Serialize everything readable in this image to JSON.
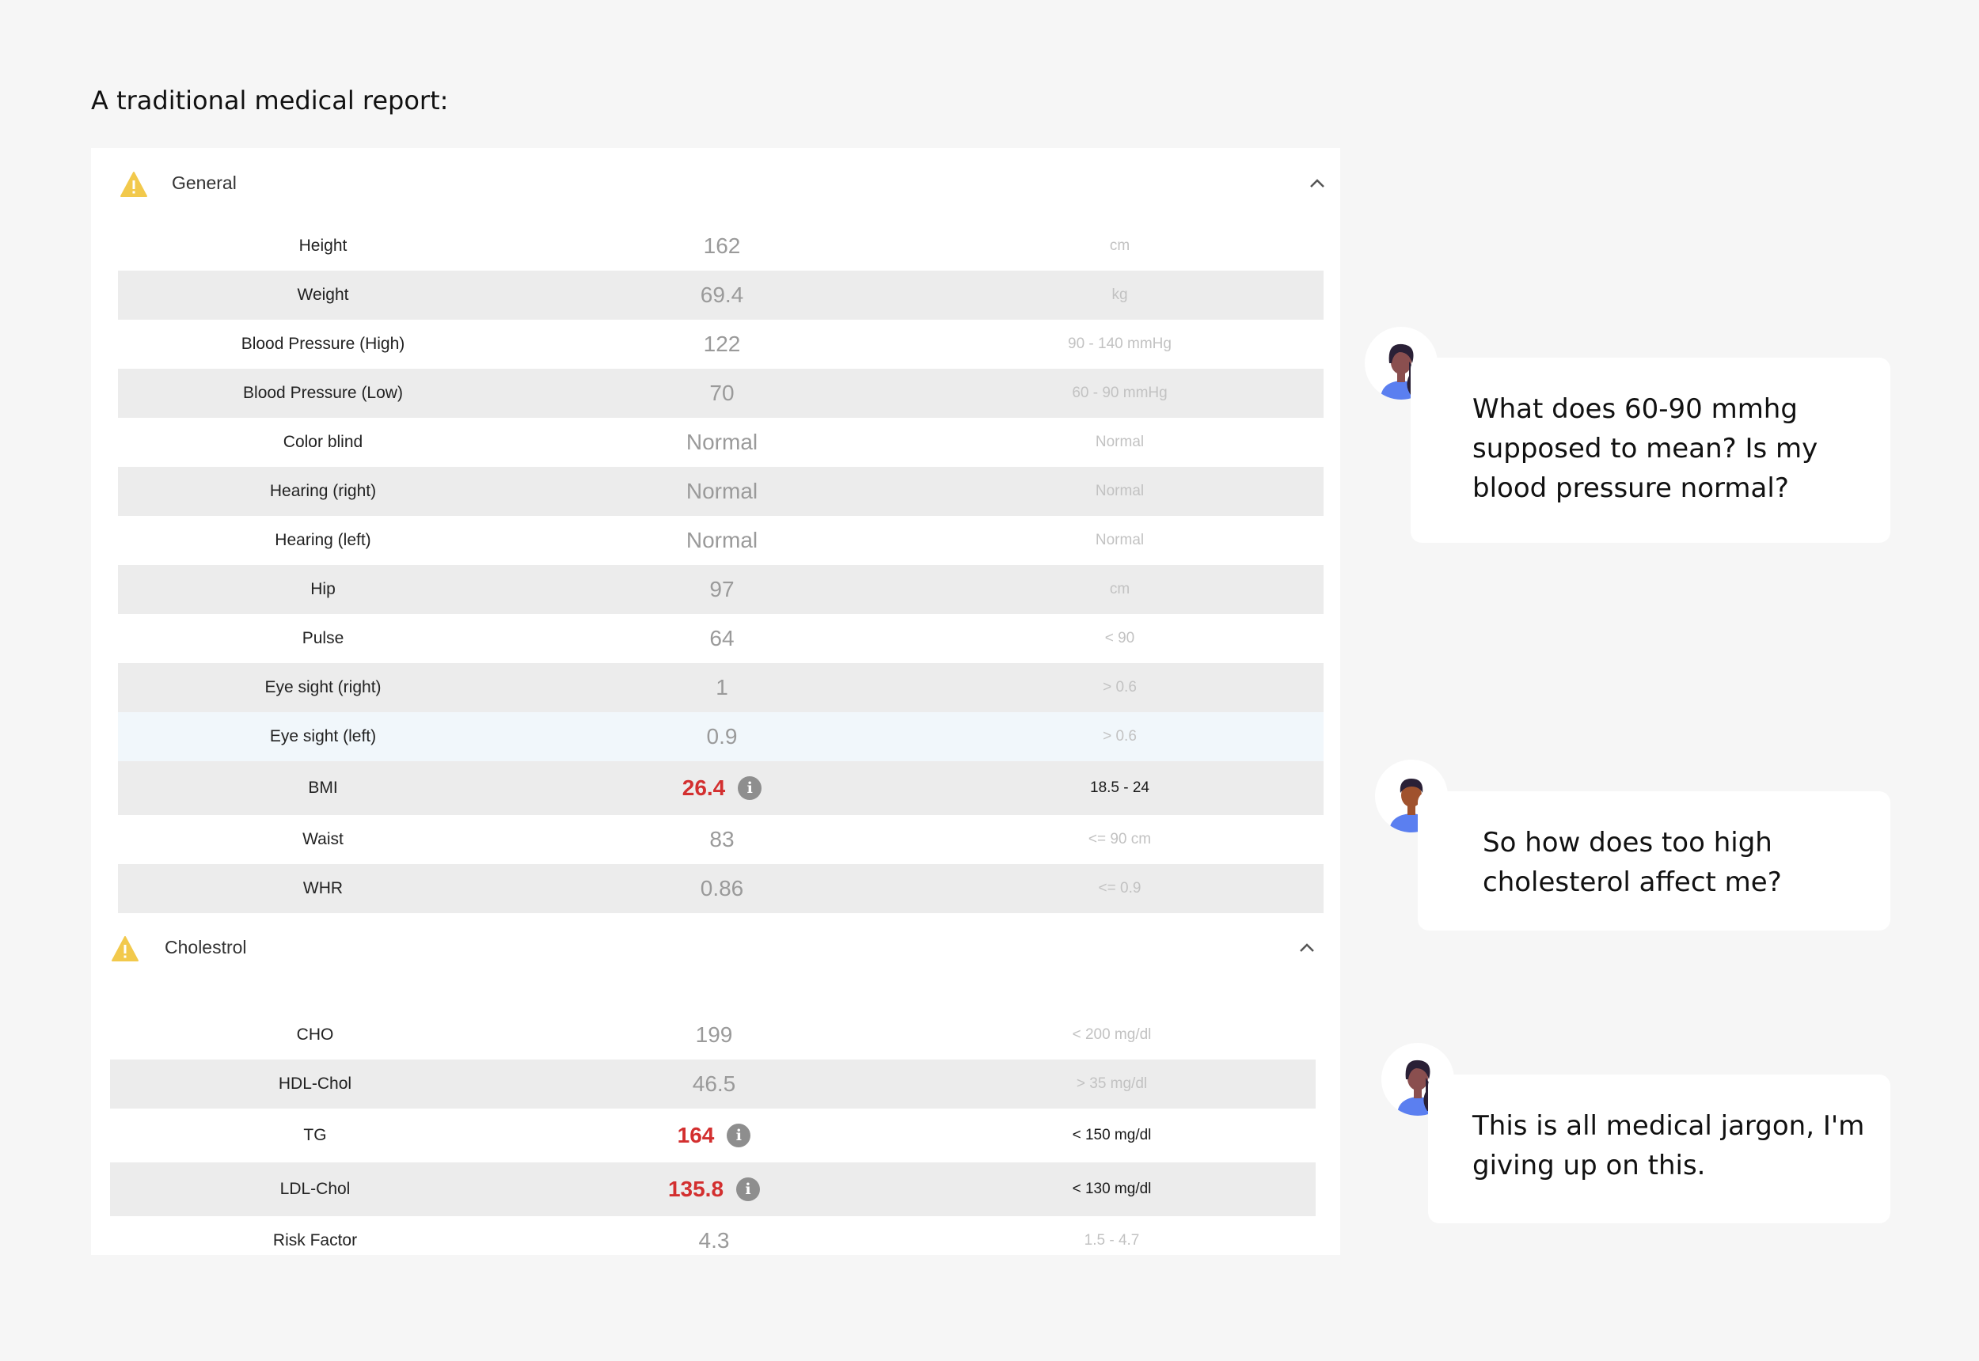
{
  "heading": "A traditional medical report:",
  "sections": [
    {
      "title": "General",
      "rows": [
        {
          "label": "Height",
          "value": "162",
          "ref": "cm"
        },
        {
          "label": "Weight",
          "value": "69.4",
          "ref": "kg"
        },
        {
          "label": "Blood Pressure (High)",
          "value": "122",
          "ref": "90 - 140 mmHg"
        },
        {
          "label": "Blood Pressure (Low)",
          "value": "70",
          "ref": "60 - 90 mmHg"
        },
        {
          "label": "Color blind",
          "value": "Normal",
          "ref": "Normal"
        },
        {
          "label": "Hearing (right)",
          "value": "Normal",
          "ref": "Normal"
        },
        {
          "label": "Hearing (left)",
          "value": "Normal",
          "ref": "Normal"
        },
        {
          "label": "Hip",
          "value": "97",
          "ref": "cm"
        },
        {
          "label": "Pulse",
          "value": "64",
          "ref": "< 90"
        },
        {
          "label": "Eye sight (right)",
          "value": "1",
          "ref": "> 0.6"
        },
        {
          "label": "Eye sight (left)",
          "value": "0.9",
          "ref": "> 0.6"
        },
        {
          "label": "BMI",
          "value": "26.4",
          "ref": "18.5 - 24",
          "flag": true
        },
        {
          "label": "Waist",
          "value": "83",
          "ref": "<= 90 cm"
        },
        {
          "label": "WHR",
          "value": "0.86",
          "ref": "<= 0.9"
        }
      ]
    },
    {
      "title": "Cholestrol",
      "rows": [
        {
          "label": "CHO",
          "value": "199",
          "ref": "< 200 mg/dl"
        },
        {
          "label": "HDL-Chol",
          "value": "46.5",
          "ref": "> 35 mg/dl"
        },
        {
          "label": "TG",
          "value": "164",
          "ref": "< 150 mg/dl",
          "flag": true
        },
        {
          "label": "LDL-Chol",
          "value": "135.8",
          "ref": "< 130 mg/dl",
          "flag": true
        },
        {
          "label": "Risk Factor",
          "value": "4.3",
          "ref": "1.5 - 4.7"
        }
      ]
    }
  ],
  "chats": [
    {
      "lines": [
        "What does 60-90 mmhg",
        "supposed to mean? Is my",
        "blood pressure normal?"
      ],
      "avatar": "woman-avatar-icon"
    },
    {
      "lines": [
        "So how does too high",
        "cholesterol affect me?"
      ],
      "avatar": "man-avatar-icon"
    },
    {
      "lines": [
        "This is all medical jargon, I'm",
        "giving up on this."
      ],
      "avatar": "woman-avatar-icon"
    }
  ],
  "colors": {
    "background": "#f6f6f6",
    "warning": "#f2c94c",
    "flag_red": "#d32f2f",
    "avatar_shirt": "#5b7ff0"
  }
}
